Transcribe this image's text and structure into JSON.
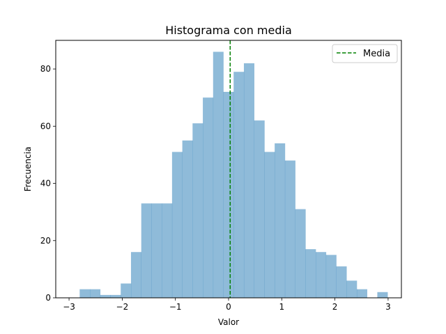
{
  "chart_data": {
    "type": "bar",
    "title": "Histograma con media",
    "xlabel": "Valor",
    "ylabel": "Frecuencia",
    "xlim": [
      -3.25,
      3.25
    ],
    "ylim": [
      0,
      90
    ],
    "xticks": [
      -3,
      -2,
      -1,
      0,
      1,
      2,
      3
    ],
    "yticks": [
      0,
      20,
      40,
      60,
      80
    ],
    "bin_start": -2.8,
    "bin_width": 0.193,
    "counts": [
      3,
      3,
      1,
      1,
      5,
      16,
      33,
      33,
      33,
      51,
      55,
      61,
      70,
      86,
      72,
      79,
      82,
      62,
      51,
      54,
      48,
      31,
      17,
      16,
      15,
      11,
      6,
      3,
      0,
      2
    ],
    "bar_color": "#1f77b4",
    "bar_alpha": 0.5,
    "mean": 0.03,
    "mean_line": {
      "label": "Media",
      "color": "#008000",
      "style": "dashed"
    },
    "legend_placement": "top-right",
    "grid": false
  }
}
